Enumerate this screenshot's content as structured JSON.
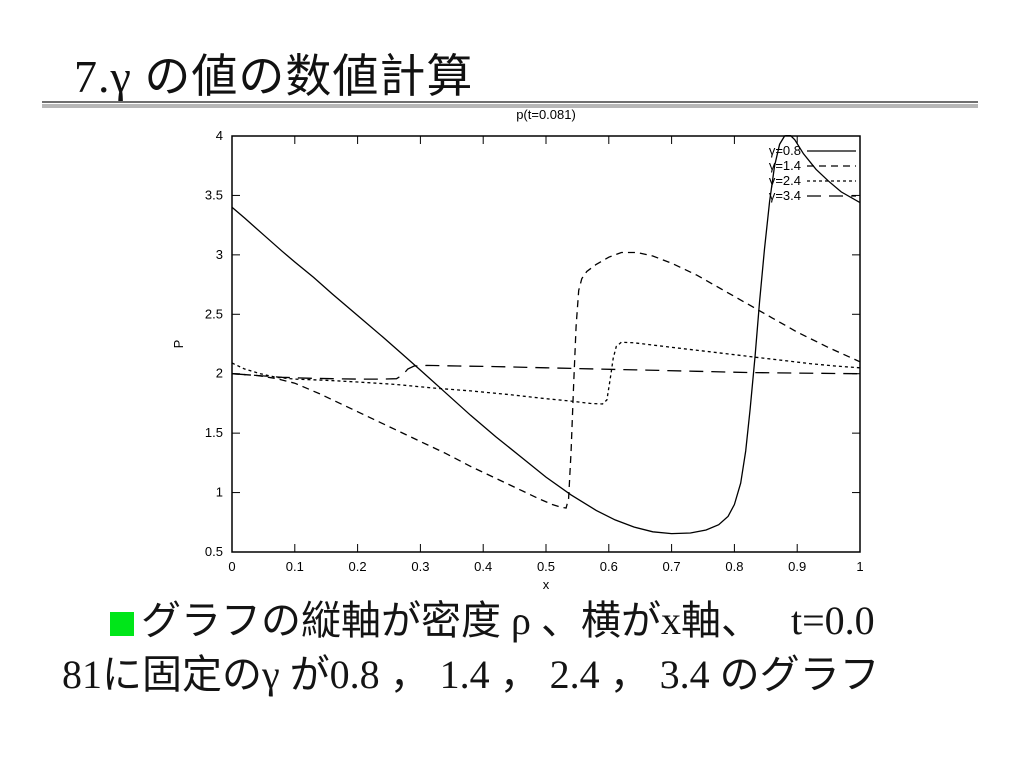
{
  "slide": {
    "title": "7.γ の値の数値計算",
    "bullet_color": "#00e619",
    "body_line1": "グラフの縦軸が密度 ρ 、横がx軸、　 t=0.0",
    "body_line2": "81に固定のγ が0.8 ， 1.4 ， 2.4 ， 3.4 のグラフ"
  },
  "chart_data": {
    "type": "line",
    "title": "p(t=0.081)",
    "xlabel": "x",
    "ylabel": "P",
    "xlim": [
      0,
      1
    ],
    "ylim": [
      0.5,
      4
    ],
    "xticks": [
      "0",
      "0.1",
      "0.2",
      "0.3",
      "0.4",
      "0.5",
      "0.6",
      "0.7",
      "0.8",
      "0.9",
      "1"
    ],
    "yticks": [
      "0.5",
      "1",
      "1.5",
      "2",
      "2.5",
      "3",
      "3.5",
      "4"
    ],
    "grid": false,
    "legend_position": "top-right",
    "line_color": "#000000",
    "series": [
      {
        "name": "γ=0.8",
        "dash": "solid",
        "points": [
          [
            0,
            3.4
          ],
          [
            0.02,
            3.31
          ],
          [
            0.05,
            3.17
          ],
          [
            0.08,
            3.03
          ],
          [
            0.1,
            2.94
          ],
          [
            0.13,
            2.81
          ],
          [
            0.16,
            2.67
          ],
          [
            0.2,
            2.49
          ],
          [
            0.24,
            2.31
          ],
          [
            0.27,
            2.17
          ],
          [
            0.3,
            2.03
          ],
          [
            0.34,
            1.84
          ],
          [
            0.38,
            1.65
          ],
          [
            0.42,
            1.47
          ],
          [
            0.46,
            1.3
          ],
          [
            0.5,
            1.13
          ],
          [
            0.54,
            0.98
          ],
          [
            0.58,
            0.85
          ],
          [
            0.61,
            0.77
          ],
          [
            0.64,
            0.71
          ],
          [
            0.67,
            0.67
          ],
          [
            0.7,
            0.655
          ],
          [
            0.73,
            0.66
          ],
          [
            0.755,
            0.685
          ],
          [
            0.775,
            0.73
          ],
          [
            0.79,
            0.8
          ],
          [
            0.8,
            0.9
          ],
          [
            0.81,
            1.08
          ],
          [
            0.818,
            1.35
          ],
          [
            0.825,
            1.7
          ],
          [
            0.833,
            2.15
          ],
          [
            0.84,
            2.6
          ],
          [
            0.848,
            3.05
          ],
          [
            0.856,
            3.45
          ],
          [
            0.864,
            3.75
          ],
          [
            0.872,
            3.93
          ],
          [
            0.88,
            4.0
          ],
          [
            0.888,
            4.01
          ],
          [
            0.896,
            3.97
          ],
          [
            0.91,
            3.85
          ],
          [
            0.93,
            3.72
          ],
          [
            0.95,
            3.62
          ],
          [
            0.97,
            3.53
          ],
          [
            1.0,
            3.44
          ]
        ]
      },
      {
        "name": "γ=1.4",
        "dash": "dash",
        "points": [
          [
            0,
            2.0
          ],
          [
            0.04,
            1.985
          ],
          [
            0.07,
            1.96
          ],
          [
            0.1,
            1.92
          ],
          [
            0.14,
            1.83
          ],
          [
            0.18,
            1.73
          ],
          [
            0.22,
            1.63
          ],
          [
            0.26,
            1.53
          ],
          [
            0.3,
            1.43
          ],
          [
            0.34,
            1.33
          ],
          [
            0.38,
            1.22
          ],
          [
            0.42,
            1.12
          ],
          [
            0.46,
            1.02
          ],
          [
            0.49,
            0.945
          ],
          [
            0.51,
            0.9
          ],
          [
            0.525,
            0.875
          ],
          [
            0.532,
            0.87
          ],
          [
            0.536,
            0.95
          ],
          [
            0.54,
            1.35
          ],
          [
            0.544,
            1.9
          ],
          [
            0.548,
            2.4
          ],
          [
            0.552,
            2.7
          ],
          [
            0.557,
            2.8
          ],
          [
            0.565,
            2.86
          ],
          [
            0.58,
            2.92
          ],
          [
            0.6,
            2.98
          ],
          [
            0.62,
            3.02
          ],
          [
            0.645,
            3.02
          ],
          [
            0.67,
            2.99
          ],
          [
            0.7,
            2.93
          ],
          [
            0.74,
            2.83
          ],
          [
            0.78,
            2.71
          ],
          [
            0.82,
            2.59
          ],
          [
            0.86,
            2.47
          ],
          [
            0.9,
            2.35
          ],
          [
            0.95,
            2.22
          ],
          [
            1.0,
            2.1
          ]
        ]
      },
      {
        "name": "γ=2.4",
        "dash": "fine-dash",
        "points": [
          [
            0,
            2.09
          ],
          [
            0.02,
            2.04
          ],
          [
            0.045,
            2.0
          ],
          [
            0.07,
            1.97
          ],
          [
            0.1,
            1.955
          ],
          [
            0.15,
            1.945
          ],
          [
            0.2,
            1.93
          ],
          [
            0.26,
            1.91
          ],
          [
            0.32,
            1.88
          ],
          [
            0.38,
            1.855
          ],
          [
            0.44,
            1.825
          ],
          [
            0.5,
            1.79
          ],
          [
            0.54,
            1.77
          ],
          [
            0.57,
            1.75
          ],
          [
            0.59,
            1.745
          ],
          [
            0.597,
            1.78
          ],
          [
            0.602,
            1.95
          ],
          [
            0.607,
            2.13
          ],
          [
            0.612,
            2.23
          ],
          [
            0.62,
            2.265
          ],
          [
            0.64,
            2.26
          ],
          [
            0.68,
            2.235
          ],
          [
            0.72,
            2.21
          ],
          [
            0.76,
            2.185
          ],
          [
            0.8,
            2.16
          ],
          [
            0.84,
            2.135
          ],
          [
            0.88,
            2.11
          ],
          [
            0.92,
            2.085
          ],
          [
            0.96,
            2.065
          ],
          [
            1.0,
            2.05
          ]
        ]
      },
      {
        "name": "γ=3.4",
        "dash": "long-dash",
        "points": [
          [
            0,
            2.0
          ],
          [
            0.04,
            1.985
          ],
          [
            0.08,
            1.97
          ],
          [
            0.12,
            1.962
          ],
          [
            0.16,
            1.958
          ],
          [
            0.2,
            1.955
          ],
          [
            0.24,
            1.955
          ],
          [
            0.262,
            1.958
          ],
          [
            0.272,
            1.99
          ],
          [
            0.28,
            2.04
          ],
          [
            0.29,
            2.065
          ],
          [
            0.31,
            2.07
          ],
          [
            0.36,
            2.065
          ],
          [
            0.42,
            2.06
          ],
          [
            0.5,
            2.05
          ],
          [
            0.58,
            2.04
          ],
          [
            0.66,
            2.03
          ],
          [
            0.74,
            2.02
          ],
          [
            0.82,
            2.01
          ],
          [
            0.9,
            2.005
          ],
          [
            1.0,
            2.0
          ]
        ]
      }
    ]
  }
}
